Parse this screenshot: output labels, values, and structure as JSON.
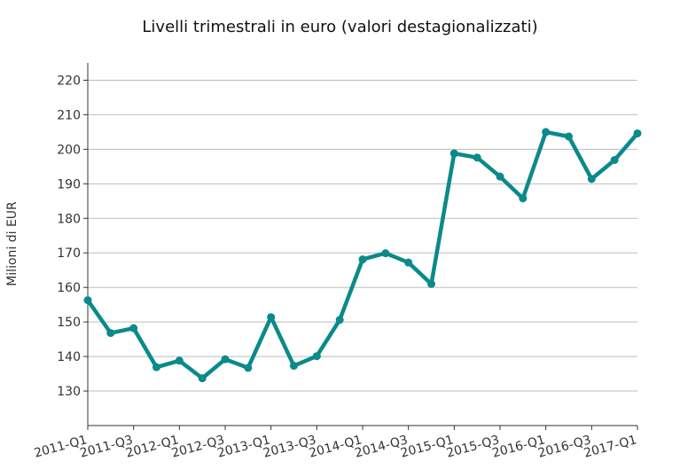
{
  "chart_data": {
    "type": "line",
    "title": "Livelli trimestrali in euro (valori destagionalizzati)",
    "xlabel": "",
    "ylabel": "Milioni di EUR",
    "ylim": [
      120,
      225
    ],
    "yticks": [
      130,
      140,
      150,
      160,
      170,
      180,
      190,
      200,
      210,
      220
    ],
    "x": [
      "2011-Q1",
      "2011-Q2",
      "2011-Q3",
      "2011-Q4",
      "2012-Q1",
      "2012-Q2",
      "2012-Q3",
      "2012-Q4",
      "2013-Q1",
      "2013-Q2",
      "2013-Q3",
      "2013-Q4",
      "2014-Q1",
      "2014-Q2",
      "2014-Q3",
      "2014-Q4",
      "2015-Q1",
      "2015-Q2",
      "2015-Q3",
      "2015-Q4",
      "2016-Q1",
      "2016-Q2",
      "2016-Q3",
      "2016-Q4",
      "2017-Q1"
    ],
    "xtick_labels": [
      "2011-Q1",
      "2011-Q3",
      "2012-Q1",
      "2012-Q3",
      "2013-Q1",
      "2013-Q3",
      "2014-Q1",
      "2014-Q3",
      "2015-Q1",
      "2015-Q3",
      "2016-Q1",
      "2016-Q3",
      "2017-Q1"
    ],
    "series": [
      {
        "color": "#0a8a8a",
        "values": [
          156.3,
          146.8,
          148.2,
          136.9,
          138.8,
          133.7,
          139.2,
          136.7,
          151.4,
          137.3,
          140.1,
          150.6,
          168.1,
          169.9,
          167.2,
          161.0,
          198.8,
          197.6,
          192.1,
          185.8,
          205.0,
          203.7,
          191.4,
          196.9,
          204.6
        ]
      }
    ],
    "grid": true,
    "legend": "none"
  }
}
